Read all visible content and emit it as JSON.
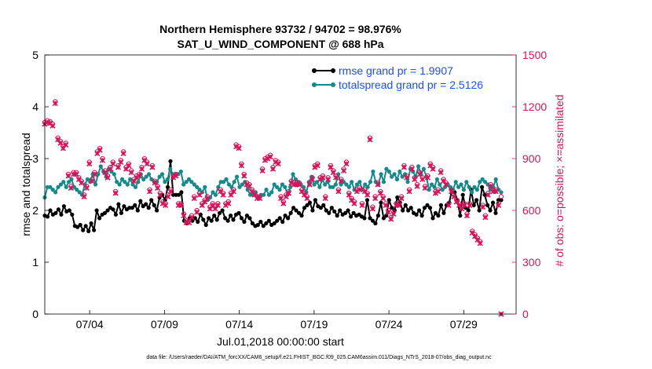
{
  "chart_data": {
    "type": "line",
    "title_line1": "Northern Hemisphere 93732 / 94702 = 98.976%",
    "title_line2": "SAT_U_WIND_COMPONENT @ 688 hPa",
    "xlabel": "Jul.01,2018 00:00:00 start",
    "ylabel_left": "rmse and totalspread",
    "ylabel_right": "# of obs: o=possible; ×=assimilated",
    "xlim": [
      1,
      32.5
    ],
    "ylim_left": [
      0,
      5
    ],
    "ylim_right": [
      0,
      1500
    ],
    "left_ticks": [
      "0",
      "1",
      "2",
      "3",
      "4",
      "5"
    ],
    "right_ticks": [
      "0",
      "300",
      "600",
      "900",
      "1200",
      "1500"
    ],
    "x_ticks": [
      {
        "day": 4,
        "label": "07/04"
      },
      {
        "day": 9,
        "label": "07/09"
      },
      {
        "day": 14,
        "label": "07/14"
      },
      {
        "day": 19,
        "label": "07/19"
      },
      {
        "day": 24,
        "label": "07/24"
      },
      {
        "day": 29,
        "label": "07/29"
      }
    ],
    "colors": {
      "rmse": "#000000",
      "spread": "#148a8a",
      "obs": "#d6145a",
      "legend_text": "#1a4fff"
    },
    "series": [
      {
        "name": "rmse",
        "legend": "rmse grand pr = 1.9907",
        "values": [
          1.9,
          1.88,
          2.0,
          1.92,
          1.95,
          2.02,
          1.92,
          2.08,
          1.98,
          2.0,
          1.92,
          1.7,
          1.68,
          1.72,
          1.62,
          1.7,
          1.6,
          1.75,
          1.62,
          2.0,
          1.85,
          1.92,
          1.95,
          2.0,
          2.05,
          2.02,
          1.92,
          2.12,
          1.95,
          2.08,
          2.02,
          2.05,
          2.05,
          2.1,
          2.0,
          2.18,
          2.08,
          2.12,
          2.05,
          2.2,
          2.1,
          2.0,
          2.25,
          2.3,
          2.2,
          2.45,
          2.95,
          2.3,
          2.3,
          2.3,
          2.35,
          1.8,
          1.75,
          1.85,
          1.8,
          1.85,
          1.78,
          1.92,
          1.82,
          1.72,
          1.85,
          1.8,
          1.9,
          1.82,
          1.95,
          2.0,
          1.85,
          1.8,
          1.9,
          1.82,
          1.92,
          1.95,
          1.85,
          1.78,
          1.9,
          1.85,
          1.75,
          1.7,
          1.72,
          1.78,
          1.7,
          1.75,
          1.8,
          1.72,
          1.75,
          1.8,
          1.85,
          1.78,
          1.9,
          1.85,
          1.95,
          2.05,
          2.0,
          1.95,
          1.9,
          2.05,
          2.1,
          2.15,
          2.0,
          2.2,
          2.08,
          2.05,
          2.1,
          2.0,
          1.95,
          2.05,
          1.98,
          1.9,
          2.0,
          1.92,
          1.95,
          2.0,
          1.88,
          1.95,
          1.9,
          1.92,
          1.88,
          1.85,
          2.2,
          1.85,
          1.8,
          1.75,
          1.9,
          2.15,
          1.85,
          1.9,
          2.2,
          2.05,
          2.0,
          2.25,
          2.15,
          2.0,
          2.1,
          2.0,
          2.05,
          1.95,
          1.92,
          2.0,
          1.9,
          2.05,
          2.1,
          2.05,
          1.85,
          1.95,
          1.9,
          2.1,
          1.95,
          2.1,
          2.15,
          2.4,
          2.35,
          2.2,
          1.9,
          2.3,
          2.05,
          2.0,
          2.4,
          2.1,
          2.2,
          2.0,
          2.45,
          2.3,
          2.1,
          2.0,
          2.15,
          1.95,
          2.2,
          2.2
        ],
        "marker": "filled-dot"
      },
      {
        "name": "totalspread",
        "legend": "totalspread grand pr = 2.5126",
        "values": [
          2.25,
          2.45,
          2.45,
          2.4,
          2.35,
          2.45,
          2.5,
          2.55,
          2.45,
          2.55,
          2.6,
          2.45,
          2.4,
          2.35,
          2.3,
          2.5,
          2.6,
          2.55,
          2.7,
          2.5,
          2.7,
          2.85,
          2.75,
          2.65,
          2.8,
          2.75,
          2.7,
          2.55,
          2.5,
          2.6,
          2.55,
          2.5,
          2.6,
          2.5,
          2.45,
          2.55,
          2.7,
          2.6,
          2.65,
          2.7,
          2.6,
          2.55,
          2.55,
          2.65,
          2.7,
          2.55,
          2.6,
          2.8,
          2.7,
          2.7,
          2.7,
          2.75,
          2.5,
          2.55,
          2.6,
          2.55,
          2.5,
          2.45,
          2.4,
          2.35,
          2.45,
          2.2,
          2.25,
          2.35,
          2.3,
          2.45,
          2.55,
          2.55,
          2.6,
          2.5,
          2.45,
          2.55,
          2.65,
          2.45,
          2.5,
          2.55,
          2.4,
          2.3,
          2.3,
          2.35,
          2.25,
          2.3,
          2.3,
          2.4,
          2.3,
          2.35,
          2.5,
          2.45,
          2.4,
          2.5,
          2.45,
          2.3,
          2.45,
          2.7,
          2.6,
          2.55,
          2.5,
          2.45,
          2.35,
          2.55,
          2.65,
          2.5,
          2.55,
          2.45,
          2.6,
          2.5,
          2.55,
          2.45,
          2.45,
          2.5,
          2.7,
          2.5,
          2.55,
          2.5,
          2.45,
          2.55,
          2.4,
          2.5,
          2.55,
          2.4,
          2.5,
          2.45,
          2.55,
          2.75,
          2.55,
          2.5,
          2.7,
          2.55,
          2.8,
          2.75,
          2.65,
          2.7,
          2.6,
          2.75,
          2.65,
          2.7,
          2.55,
          2.8,
          2.75,
          2.65,
          2.85,
          2.7,
          2.8,
          2.65,
          2.4,
          2.5,
          2.45,
          2.6,
          2.5,
          2.4,
          2.45,
          2.5,
          2.45,
          2.4,
          2.55,
          2.45,
          2.5,
          2.4,
          2.55,
          2.45,
          2.35,
          2.45,
          2.4,
          2.55,
          2.6,
          2.55,
          2.5,
          2.4,
          2.45,
          2.6,
          2.4,
          2.35
        ],
        "marker": "filled-dot"
      },
      {
        "name": "obs_possible",
        "legend": "",
        "values": [
          1110,
          1120,
          1115,
          1100,
          1230,
          1020,
          1000,
          970,
          990,
          810,
          740,
          820,
          820,
          790,
          770,
          690,
          740,
          880,
          780,
          820,
          940,
          960,
          900,
          830,
          800,
          850,
          880,
          710,
          860,
          890,
          940,
          850,
          870,
          830,
          780,
          800,
          810,
          850,
          900,
          880,
          720,
          860,
          770,
          740,
          700,
          650,
          640,
          690,
          720,
          800,
          810,
          640,
          640,
          580,
          540,
          540,
          570,
          680,
          600,
          700,
          640,
          660,
          680,
          620,
          640,
          620,
          640,
          720,
          700,
          640,
          650,
          700,
          720,
          980,
          970,
          870,
          810,
          760,
          750,
          720,
          700,
          680,
          680,
          840,
          900,
          910,
          920,
          850,
          890,
          880,
          680,
          650,
          690,
          710,
          770,
          760,
          760,
          760,
          720,
          700,
          680,
          760,
          790,
          860,
          870,
          790,
          800,
          680,
          790,
          860,
          830,
          800,
          720,
          780,
          840,
          880,
          700,
          670,
          650,
          720,
          730,
          640,
          720,
          700,
          1020,
          620,
          680,
          760,
          710,
          680,
          640,
          600,
          560,
          590,
          640,
          640,
          680,
          860,
          800,
          720,
          850,
          790,
          750,
          820,
          790,
          740,
          800,
          870,
          850,
          710,
          720,
          830,
          780,
          760,
          640,
          720,
          690,
          660,
          640,
          620,
          640,
          580,
          640,
          480,
          460,
          440,
          420,
          630,
          570,
          700,
          750,
          720,
          720,
          640,
          680
        ],
        "marker": "circle"
      },
      {
        "name": "obs_assimilated",
        "legend": "",
        "values": [
          1100,
          1110,
          1105,
          1090,
          1220,
          1010,
          990,
          960,
          980,
          800,
          730,
          810,
          810,
          780,
          760,
          680,
          730,
          870,
          770,
          810,
          930,
          950,
          890,
          820,
          790,
          840,
          870,
          700,
          850,
          880,
          930,
          840,
          860,
          820,
          770,
          790,
          800,
          840,
          890,
          870,
          710,
          850,
          760,
          730,
          690,
          640,
          630,
          680,
          710,
          790,
          800,
          630,
          630,
          570,
          530,
          530,
          560,
          670,
          590,
          690,
          630,
          650,
          670,
          610,
          630,
          610,
          630,
          710,
          690,
          630,
          640,
          690,
          710,
          970,
          960,
          860,
          800,
          750,
          740,
          710,
          690,
          670,
          670,
          830,
          890,
          900,
          910,
          840,
          880,
          870,
          670,
          640,
          680,
          700,
          760,
          750,
          750,
          750,
          710,
          690,
          670,
          750,
          780,
          850,
          860,
          780,
          790,
          670,
          780,
          850,
          820,
          790,
          710,
          770,
          830,
          870,
          690,
          660,
          640,
          710,
          720,
          630,
          710,
          690,
          1010,
          610,
          670,
          750,
          700,
          670,
          630,
          590,
          550,
          580,
          630,
          630,
          670,
          850,
          790,
          710,
          840,
          780,
          740,
          810,
          780,
          730,
          790,
          860,
          840,
          700,
          710,
          820,
          770,
          750,
          630,
          710,
          680,
          650,
          630,
          610,
          630,
          570,
          630,
          470,
          450,
          430,
          410,
          620,
          560,
          690,
          740,
          710,
          710,
          630,
          0
        ],
        "marker": "x"
      }
    ]
  },
  "footnote": "data file: /Users/raeder/DAI/ATM_forcXX/CAM6_setup/f.e21.FHIST_BGC.f09_025.CAM6assim.011/Diags_NTrS_2018-07/obs_diag_output.nc"
}
